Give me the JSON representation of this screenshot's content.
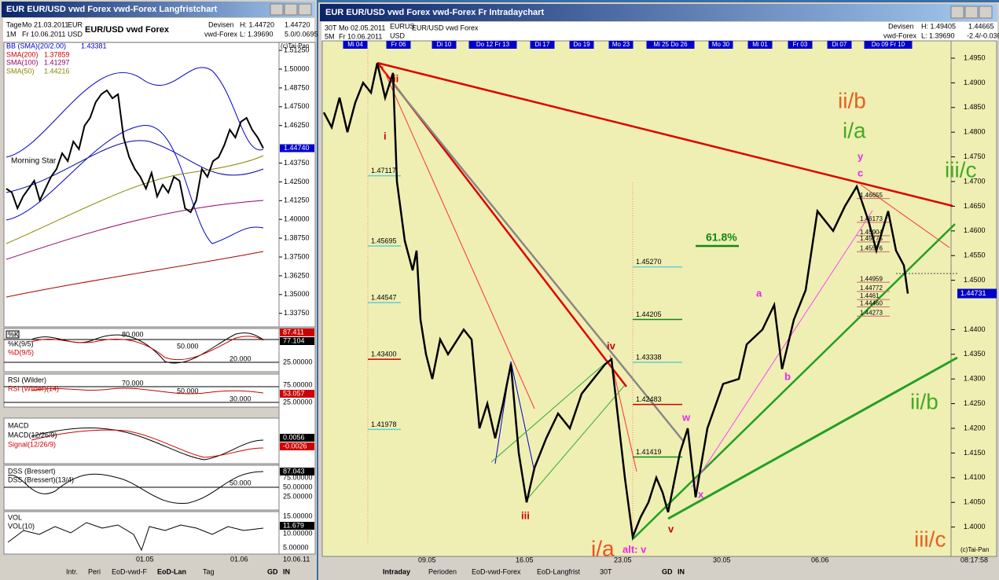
{
  "left_window": {
    "title": "EUR EUR/USD vwd Forex vwd-Forex Langfristchart",
    "info": [
      "Tage",
      "Mo 21.03.2011",
      "EUR",
      "1M",
      "Fr 10.06.2011",
      "USD"
    ],
    "instrument": "EUR/USD  vwd Forex",
    "exchange": [
      "Devisen",
      "vwd-Forex"
    ],
    "high": "H: 1.44720",
    "low": "L: 1.39690",
    "last": "1.44720",
    "change": "5.0/0.0695",
    "legend": [
      {
        "name": "BB (SMA)(20/2.00)",
        "value": "1.43381"
      },
      {
        "name": "SMA(200)",
        "value": "1.37859"
      },
      {
        "name": "SMA(100)",
        "value": "1.41297"
      },
      {
        "name": "SMA(50)",
        "value": "1.44216"
      }
    ],
    "copyright": "(c)Tai-Pan",
    "pattern": "Morning Star",
    "yticks": [
      {
        "value": 1.5125,
        "label": "1.51250"
      },
      {
        "value": 1.5,
        "label": "1.50000"
      },
      {
        "value": 1.4875,
        "label": "1.48750"
      },
      {
        "value": 1.475,
        "label": "1.47500"
      },
      {
        "value": 1.4625,
        "label": "1.46250"
      },
      {
        "value": 1.4375,
        "label": "1.43750"
      },
      {
        "value": 1.425,
        "label": "1.42500"
      },
      {
        "value": 1.4125,
        "label": "1.41250"
      },
      {
        "value": 1.4,
        "label": "1.40000"
      },
      {
        "value": 1.3875,
        "label": "1.38750"
      },
      {
        "value": 1.375,
        "label": "1.37500"
      },
      {
        "value": 1.3625,
        "label": "1.36250"
      },
      {
        "value": 1.35,
        "label": "1.35000"
      },
      {
        "value": 1.3375,
        "label": "1.33750"
      }
    ],
    "last_price": {
      "value": 1.4474,
      "label": "1.44740"
    },
    "closes": [
      1.4205,
      1.4179,
      1.4074,
      1.4153,
      1.4205,
      1.4257,
      1.4127,
      1.4205,
      1.4283,
      1.4336,
      1.444,
      1.4388,
      1.4519,
      1.4467,
      1.4623,
      1.4676,
      1.478,
      1.4833,
      1.4859,
      1.4806,
      1.4833,
      1.4545,
      1.4414,
      1.4336,
      1.4283,
      1.4205,
      1.431,
      1.4153,
      1.4231,
      1.4179,
      1.4283,
      1.4257,
      1.4074,
      1.4048,
      1.4127,
      1.4336,
      1.4283,
      1.4388,
      1.4414,
      1.4493,
      1.4597,
      1.4545,
      1.465,
      1.4676,
      1.4597,
      1.4545,
      1.4474
    ],
    "panels": [
      {
        "title": "%K",
        "legend": [
          "%K(9/5)",
          "%D(9/5)"
        ],
        "levels": [
          "80.000",
          "50.000",
          "20.000"
        ],
        "axis": [
          "87.411",
          "77.104",
          "25.00000"
        ]
      },
      {
        "title": "RSI (Wilder)",
        "legend": [
          "RSI (Wilder)(14)"
        ],
        "levels": [
          "70.000",
          "50.000",
          "30.000"
        ],
        "axis": [
          "75.00000",
          "53.057",
          "25.00000"
        ]
      },
      {
        "title": "MACD",
        "legend": [
          "MACD(12/26/9)",
          "Signal(12/26/9)"
        ],
        "levels": [],
        "axis": [
          "0.0056",
          "-0.0026"
        ]
      },
      {
        "title": "DSS (Bressert)",
        "legend": [
          "DSS (Bressert)(13/4)"
        ],
        "levels": [
          "50.000"
        ],
        "axis": [
          "87.043",
          "75.00000",
          "50.00000",
          "25.00000"
        ]
      },
      {
        "title": "VOL",
        "legend": [
          "VOL(10)"
        ],
        "levels": [],
        "axis": [
          "15.00000",
          "11.679",
          "10.00000",
          "5.00000"
        ]
      }
    ],
    "time_labels": [
      "01.05",
      "01.06",
      "10.06.11"
    ],
    "tabs": [
      "Intr.",
      "Peri",
      "EoD-vwd-F",
      "EoD-Lan",
      "Tag",
      "GD",
      "IN"
    ]
  },
  "right_window": {
    "title": "EUR EUR/USD vwd Forex vwd-Forex Fr Intradaychart",
    "info": [
      "30T",
      "Mo 02.05.2011",
      "EURUS",
      "5M",
      "Fr 10.06.2011",
      "USD"
    ],
    "instrument": "EUR/USD  vwd Forex",
    "exchange": [
      "Devisen",
      "vwd-Forex"
    ],
    "high": "H: 1.49405",
    "low": "L: 1.39690",
    "last": "1.44665",
    "change": "-2.4/-0.036",
    "days": [
      "Mi 04",
      "Fr 06",
      "Di 10",
      "Do 12 Fr 13",
      "Di 17",
      "Do 19",
      "Mo 23",
      "Mi 25 Do 26",
      "Mo 30",
      "Mi 01",
      "Fr 03",
      "Di 07",
      "Do 09 Fr 10"
    ],
    "yticks": [
      {
        "value": 1.495,
        "label": "1.4950"
      },
      {
        "value": 1.49,
        "label": "1.4900"
      },
      {
        "value": 1.485,
        "label": "1.4850"
      },
      {
        "value": 1.48,
        "label": "1.4800"
      },
      {
        "value": 1.475,
        "label": "1.4750"
      },
      {
        "value": 1.47,
        "label": "1.4700"
      },
      {
        "value": 1.465,
        "label": "1.4650"
      },
      {
        "value": 1.46,
        "label": "1.4600"
      },
      {
        "value": 1.455,
        "label": "1.4550"
      },
      {
        "value": 1.45,
        "label": "1.4500"
      },
      {
        "value": 1.44,
        "label": "1.4400"
      },
      {
        "value": 1.435,
        "label": "1.4350"
      },
      {
        "value": 1.43,
        "label": "1.4300"
      },
      {
        "value": 1.425,
        "label": "1.4250"
      },
      {
        "value": 1.42,
        "label": "1.4200"
      },
      {
        "value": 1.415,
        "label": "1.4150"
      },
      {
        "value": 1.41,
        "label": "1.4100"
      },
      {
        "value": 1.405,
        "label": "1.4050"
      },
      {
        "value": 1.4,
        "label": "1.4000"
      }
    ],
    "last_price": 1.44731,
    "copyright": "(c)Tai-Pan",
    "price": [
      1.484,
      1.481,
      1.487,
      1.48,
      1.486,
      1.49,
      1.488,
      1.494,
      1.487,
      1.492,
      1.47,
      1.458,
      1.452,
      1.456,
      1.442,
      1.435,
      1.43,
      1.438,
      1.435,
      1.44,
      1.438,
      1.42,
      1.425,
      1.418,
      1.425,
      1.433,
      1.415,
      1.405,
      1.412,
      1.418,
      1.423,
      1.42,
      1.427,
      1.43,
      1.433,
      1.434,
      1.424,
      1.41,
      1.398,
      1.402,
      1.405,
      1.41,
      1.407,
      1.403,
      1.415,
      1.42,
      1.406,
      1.42,
      1.429,
      1.43,
      1.437,
      1.44,
      1.445,
      1.432,
      1.442,
      1.448,
      1.464,
      1.46,
      1.465,
      1.469,
      1.462,
      1.456,
      1.464,
      1.456,
      1.453,
      1.4473
    ],
    "fib_left": [
      1.47117,
      1.45695,
      1.44547,
      {
        "value": 1.434,
        "label": "1.43400"
      },
      1.41978
    ],
    "fib_middle": [
      {
        "value": 1.4527,
        "label": "1.45270"
      },
      1.44205,
      1.43338,
      1.42483,
      1.41419
    ],
    "fib_right": [
      1.46655,
      1.46173,
      1.45904,
      1.45775,
      1.45576,
      1.44959,
      1.44772,
      1.4461,
      {
        "value": 1.4446,
        "label": "1.44460"
      },
      1.44273
    ],
    "waves": [
      "i",
      "ii",
      "iii",
      "iv",
      "v",
      "i/a",
      "alt: v",
      "w",
      "x",
      "y",
      "c",
      "a",
      "b",
      "ii/b",
      "i/a",
      "iii/c",
      "ii/b",
      "iii/c",
      "61.8%"
    ],
    "time_labels": [
      "09.05",
      "16.05",
      "23.05",
      "30.05",
      "06.06",
      "08:17:58"
    ],
    "tabs": [
      "Intraday",
      "Perioden",
      "EoD-vwd-Forex",
      "EoD-Langfrist",
      "30T",
      "GD",
      "IN"
    ]
  }
}
